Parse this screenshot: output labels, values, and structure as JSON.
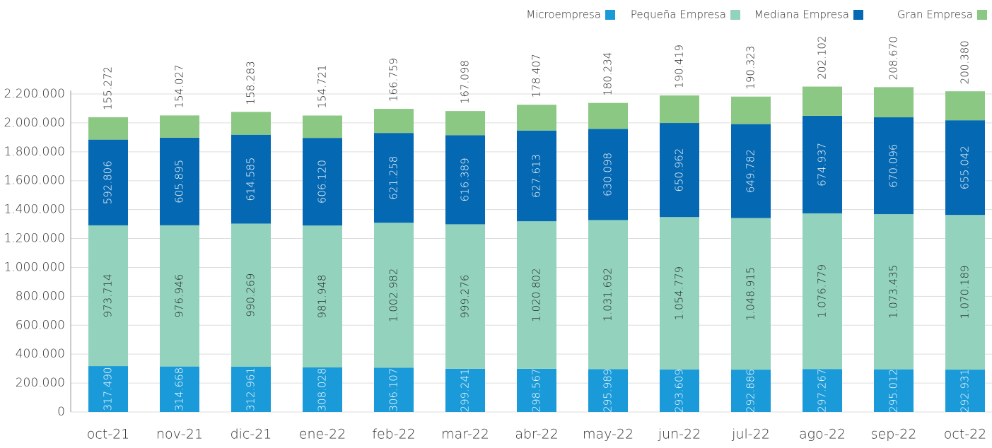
{
  "chart_data": {
    "type": "stacked_bar",
    "categories": [
      "oct-21",
      "nov-21",
      "dic-21",
      "ene-22",
      "feb-22",
      "mar-22",
      "abr-22",
      "may-22",
      "jun-22",
      "jul-22",
      "ago-22",
      "sep-22",
      "oct-22"
    ],
    "series": [
      {
        "name": "Microempresa",
        "color": "#1a9ad9",
        "values": [
          317490,
          314668,
          312961,
          308028,
          306107,
          299241,
          298567,
          295989,
          293609,
          292886,
          297267,
          295012,
          292931
        ],
        "value_labels": [
          "317.490",
          "314.668",
          "312.961",
          "308.028",
          "306.107",
          "299.241",
          "298.567",
          "295.989",
          "293.609",
          "292.886",
          "297.267",
          "295.012",
          "292.931"
        ]
      },
      {
        "name": "Pequeña Empresa",
        "color": "#93d3bd",
        "values": [
          973714,
          976946,
          990269,
          981948,
          1002982,
          999276,
          1020802,
          1031692,
          1054779,
          1048915,
          1076779,
          1073435,
          1070189
        ],
        "value_labels": [
          "973.714",
          "976.946",
          "990.269",
          "981.948",
          "1.002.982",
          "999.276",
          "1.020.802",
          "1.031.692",
          "1.054.779",
          "1.048.915",
          "1.076.779",
          "1.073.435",
          "1.070.189"
        ]
      },
      {
        "name": "Mediana Empresa",
        "color": "#0568b3",
        "values": [
          592806,
          605895,
          614585,
          606120,
          621258,
          616389,
          627613,
          630098,
          650962,
          649782,
          674937,
          670096,
          655042
        ],
        "value_labels": [
          "592.806",
          "605.895",
          "614.585",
          "606.120",
          "621.258",
          "616.389",
          "627.613",
          "630.098",
          "650.962",
          "649.782",
          "674.937",
          "670.096",
          "655.042"
        ]
      },
      {
        "name": "Gran Empresa",
        "color": "#8bc883",
        "values": [
          155272,
          154027,
          158283,
          154721,
          166759,
          167098,
          178407,
          180234,
          190419,
          190323,
          202102,
          208670,
          200380
        ],
        "value_labels": [
          "155.272",
          "154.027",
          "158.283",
          "154.721",
          "166.759",
          "167.098",
          "178.407",
          "180.234",
          "190.419",
          "190.323",
          "202.102",
          "208.670",
          "200.380"
        ]
      }
    ],
    "ylim": [
      0,
      2200000
    ],
    "yticks": [
      0,
      {
        "value": 200000,
        "label": "200.000"
      },
      {
        "value": 400000,
        "label": "400.000"
      },
      {
        "value": 600000,
        "label": "600.000"
      },
      {
        "value": 800000,
        "label": "800.000"
      },
      {
        "value": 1000000,
        "label": "1.000.000"
      },
      {
        "value": 1200000,
        "label": "1.200.000"
      },
      {
        "value": 1400000,
        "label": "1.400.000"
      },
      {
        "value": 1600000,
        "label": "1.600.000"
      },
      {
        "value": 1800000,
        "label": "1.800.000"
      },
      {
        "value": 2000000,
        "label": "2.000.000"
      },
      {
        "value": 2200000,
        "label": "2.200.000"
      }
    ],
    "grid": true,
    "legend": "top-right"
  }
}
